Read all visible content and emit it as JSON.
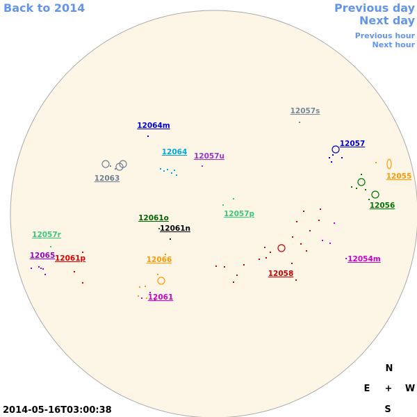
{
  "nav": {
    "back": "Back to 2014",
    "previous_day": "Previous day",
    "next_day": "Next day",
    "previous_hour": "Previous hour",
    "next_hour": "Next hour"
  },
  "timestamp": "2014-05-16T03:00:38",
  "compass": {
    "north": "N",
    "east": "E",
    "center": "+",
    "west": "W",
    "south": "S"
  },
  "regions": [
    {
      "label": "12057s",
      "color": "#778899"
    },
    {
      "label": "12064m",
      "color": "#0000cc"
    },
    {
      "label": "12064",
      "color": "#00aadd"
    },
    {
      "label": "12057u",
      "color": "#9933cc"
    },
    {
      "label": "12063",
      "color": "#708090"
    },
    {
      "label": "12057",
      "color": "#0000cc"
    },
    {
      "label": "12055",
      "color": "#ff9900"
    },
    {
      "label": "12056",
      "color": "#007700"
    },
    {
      "label": "12057p",
      "color": "#33cc77"
    },
    {
      "label": "12061o",
      "color": "#006600"
    },
    {
      "label": "12061n",
      "color": "#000000"
    },
    {
      "label": "12057r",
      "color": "#33cc77"
    },
    {
      "label": "12065",
      "color": "#9900cc"
    },
    {
      "label": "12061p",
      "color": "#dd0000"
    },
    {
      "label": "12066",
      "color": "#ff9900"
    },
    {
      "label": "12054m",
      "color": "#cc00cc"
    },
    {
      "label": "12058",
      "color": "#cc0000"
    },
    {
      "label": "12061",
      "color": "#cc00cc"
    }
  ]
}
